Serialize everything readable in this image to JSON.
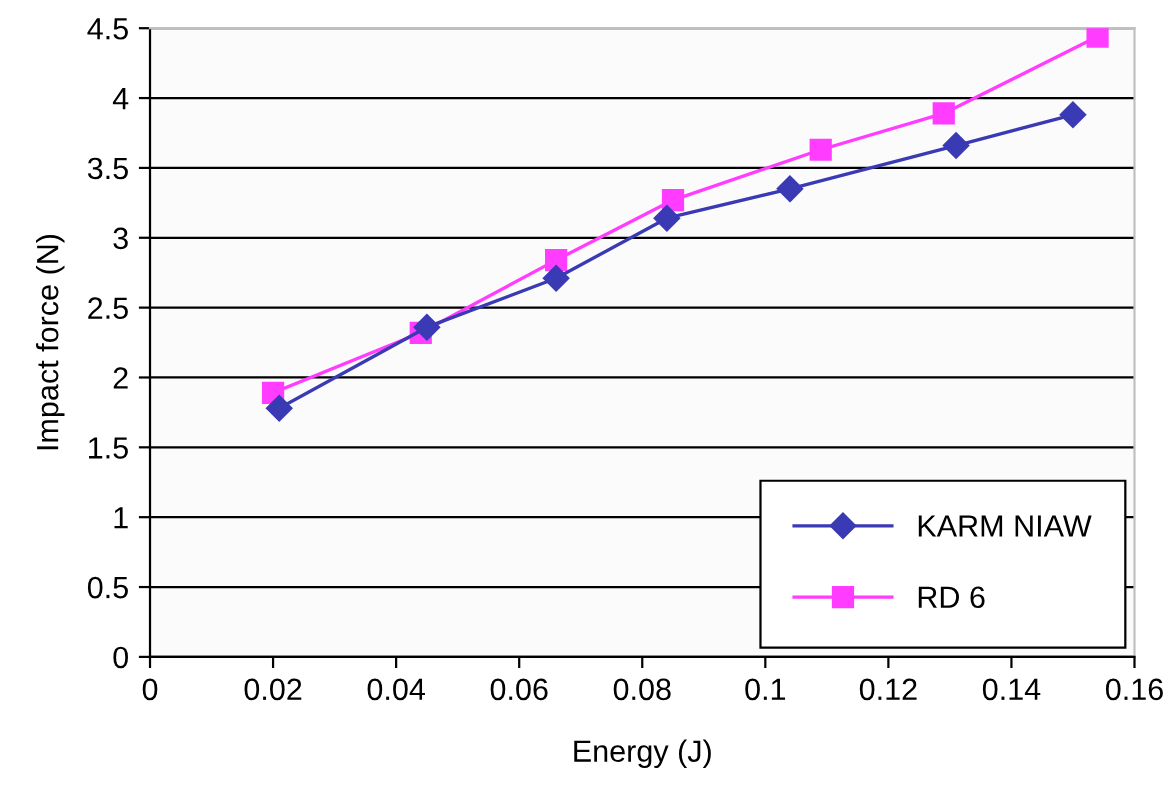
{
  "chart_data": {
    "type": "line",
    "xlabel": "Energy (J)",
    "ylabel": "Impact force (N)",
    "xlim": [
      0,
      0.16
    ],
    "xticks": [
      0,
      0.02,
      0.04,
      0.06,
      0.08,
      0.1,
      0.12,
      0.14,
      0.16
    ],
    "ylim": [
      0,
      4.5
    ],
    "yticks": [
      0,
      0.5,
      1,
      1.5,
      2,
      2.5,
      3,
      3.5,
      4,
      4.5
    ],
    "grid": "y",
    "legend": "bottom right",
    "series": [
      {
        "name": "KARM NIAW",
        "color": "#3a3ab4",
        "marker": "diamond",
        "x": [
          0.021,
          0.045,
          0.066,
          0.084,
          0.104,
          0.131,
          0.15
        ],
        "values": [
          1.78,
          2.36,
          2.71,
          3.14,
          3.35,
          3.66,
          3.88
        ]
      },
      {
        "name": "RD 6",
        "color": "#ff3cff",
        "marker": "square",
        "x": [
          0.02,
          0.044,
          0.066,
          0.085,
          0.109,
          0.129,
          0.154
        ],
        "values": [
          1.89,
          2.32,
          2.84,
          3.27,
          3.63,
          3.89,
          4.44
        ]
      }
    ]
  }
}
